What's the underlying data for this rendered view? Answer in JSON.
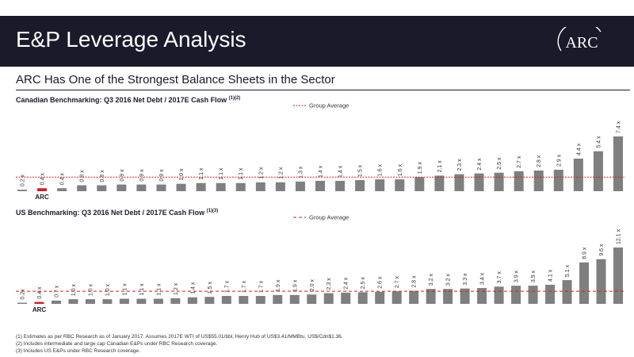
{
  "slide": {
    "title": "E&P Leverage Analysis",
    "logo_text": "ARC",
    "subtitle": "ARC Has One of the Strongest Balance Sheets in the Sector",
    "colors": {
      "header_bg": "#1a1a2a",
      "bar": "#7f7f7f",
      "highlight": "#d71920",
      "average_line": "#d71920"
    }
  },
  "chart_data": [
    {
      "type": "bar",
      "title": "Canadian Benchmarking: Q3 2016 Net Debt / 2017E Cash Flow",
      "title_sup": "(1)(2)",
      "legend": "Group Average",
      "legend_position": "top-center",
      "highlight_label": "ARC",
      "highlight_index": 1,
      "group_average": 1.9,
      "ylim": [
        0,
        7.4
      ],
      "values": [
        0.2,
        0.4,
        0.4,
        0.8,
        0.8,
        0.9,
        0.9,
        0.9,
        1.0,
        1.1,
        1.1,
        1.1,
        1.2,
        1.2,
        1.3,
        1.4,
        1.4,
        1.5,
        1.6,
        1.6,
        1.9,
        2.1,
        2.3,
        2.4,
        2.5,
        2.7,
        2.8,
        2.9,
        4.4,
        5.4,
        7.4
      ],
      "labels": [
        "0.2 x",
        "0.4 x",
        "0.4 x",
        "0.8 x",
        "0.8 x",
        "0.9 x",
        "0.9 x",
        "0.9 x",
        "1.0 x",
        "1.1 x",
        "1.1 x",
        "1.1 x",
        "1.2 x",
        "1.2 x",
        "1.3 x",
        "1.4 x",
        "1.4 x",
        "1.5 x",
        "1.6 x",
        "1.6 x",
        "1.9 x",
        "2.1 x",
        "2.3 x",
        "2.4 x",
        "2.5 x",
        "2.7 x",
        "2.8 x",
        "2.9 x",
        "4.4 x",
        "5.4 x",
        "7.4 x"
      ]
    },
    {
      "type": "bar",
      "title": "US Benchmarking: Q3 2016 Net Debt / 2017E Cash Flow",
      "title_sup": "(1)(3)",
      "legend": "Group Average",
      "legend_position": "top-center",
      "highlight_label": "ARC",
      "highlight_index": 1,
      "group_average": 2.7,
      "ylim": [
        0,
        12.1
      ],
      "values": [
        0.2,
        0.4,
        0.7,
        1.0,
        1.0,
        1.0,
        1.1,
        1.1,
        1.1,
        1.2,
        1.4,
        1.5,
        1.7,
        1.7,
        1.7,
        1.9,
        1.9,
        2.0,
        2.3,
        2.4,
        2.5,
        2.6,
        2.7,
        2.8,
        3.2,
        3.2,
        3.3,
        3.4,
        3.7,
        3.9,
        3.9,
        4.1,
        5.1,
        8.9,
        9.6,
        12.1
      ],
      "labels": [
        "0.2x",
        "0.4 x",
        "0.7 x",
        "1.0 x",
        "1.0 x",
        "1.0 x",
        "1.1 x",
        "1.1 x",
        "1.1 x",
        "1.2 x",
        "1.4 x",
        "1.5 x",
        "1.7 x",
        "1.7 x",
        "1.7 x",
        "1.9 x",
        "1.9 x",
        "2.0 x",
        "2.3 x",
        "2.4 x",
        "2.5 x",
        "2.6 x",
        "2.7 x",
        "2.8 x",
        "3.2 x",
        "3.2 x",
        "3.3 x",
        "3.4 x",
        "3.7 x",
        "3.9 x",
        "3.9 x",
        "4.1 x",
        "5.1 x",
        "8.9 x",
        "9.6 x",
        "12.1 x"
      ]
    }
  ],
  "footnotes": [
    "(1)   Estimates as per RBC Research as of January 2017. Assumes 2017E WTI of US$55.01/bbl, Henry Hub of US$3.41/MMBtu, US$/Cdn$1.36.",
    "(2)   Includes intermediate and large cap Canadian E&Ps under RBC Research coverage.",
    "(3)   Includes US E&Ps under RBC Research coverage."
  ]
}
